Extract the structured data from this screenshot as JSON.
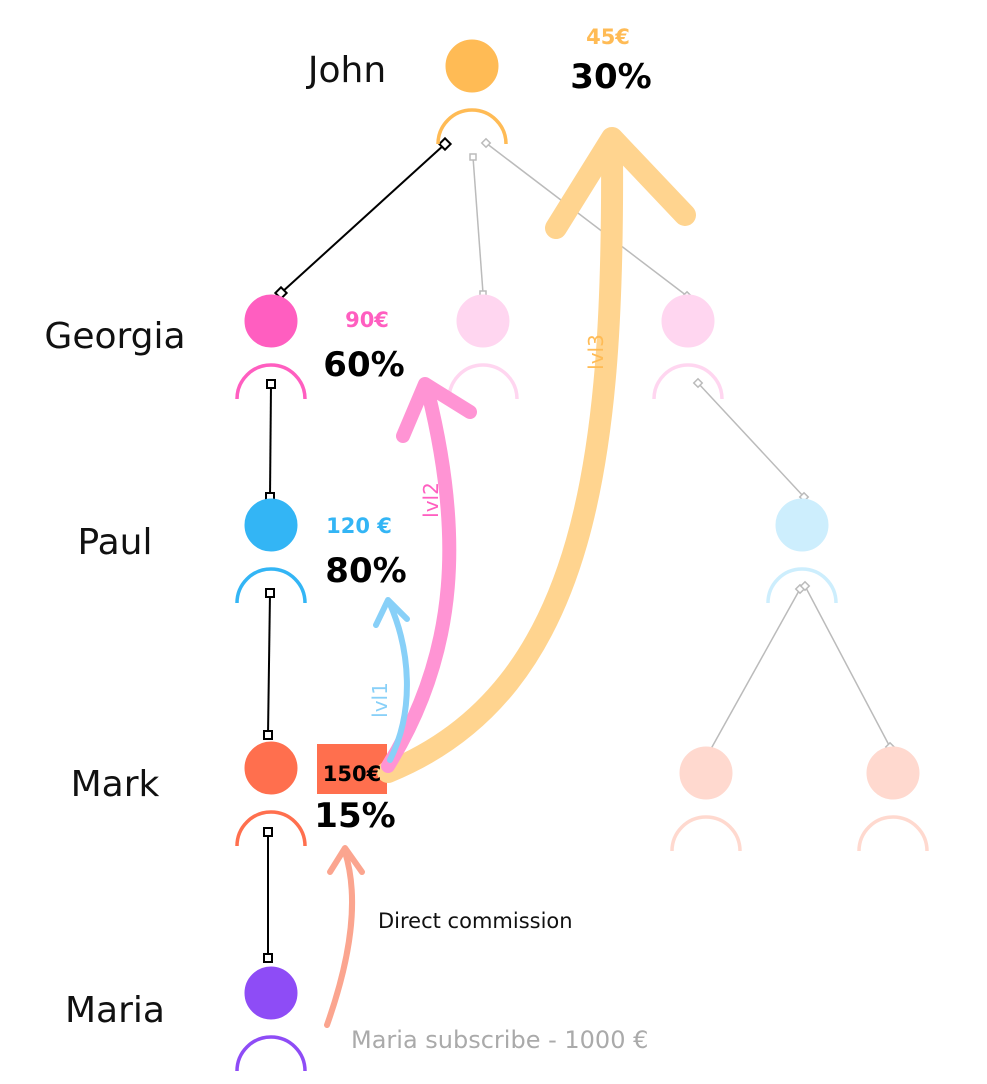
{
  "colors": {
    "john": "#FFBB55",
    "georgia": "#FF5EC0",
    "paul": "#33B5F5",
    "mark": "#FF6F4E",
    "maria": "#8E4CF6",
    "georgia_faded": "#FFD6F0",
    "paul_faded": "#CDEEFD",
    "mark_faded": "#FFD9CF",
    "arrow_lvl1": "#88D0F8",
    "arrow_lvl2": "#FF94D4",
    "arrow_lvl3": "#FFD48F",
    "arrow_direct": "#FBA58F",
    "connector_active": "#000000",
    "connector_faded": "#BBBBBB"
  },
  "people": {
    "john": {
      "name": "John",
      "amount": "45€",
      "percent": "30%"
    },
    "georgia": {
      "name": "Georgia",
      "amount": "90€",
      "percent": "60%"
    },
    "paul": {
      "name": "Paul",
      "amount": "120 €",
      "percent": "80%"
    },
    "mark": {
      "name": "Mark",
      "amount": "150€",
      "percent": "15%"
    },
    "maria": {
      "name": "Maria"
    }
  },
  "arrows": {
    "lvl1": "lvl1",
    "lvl2": "lvl2",
    "lvl3": "lvl3",
    "direct": "Direct commission"
  },
  "subscription_note": "Maria subscribe - 1000 €"
}
